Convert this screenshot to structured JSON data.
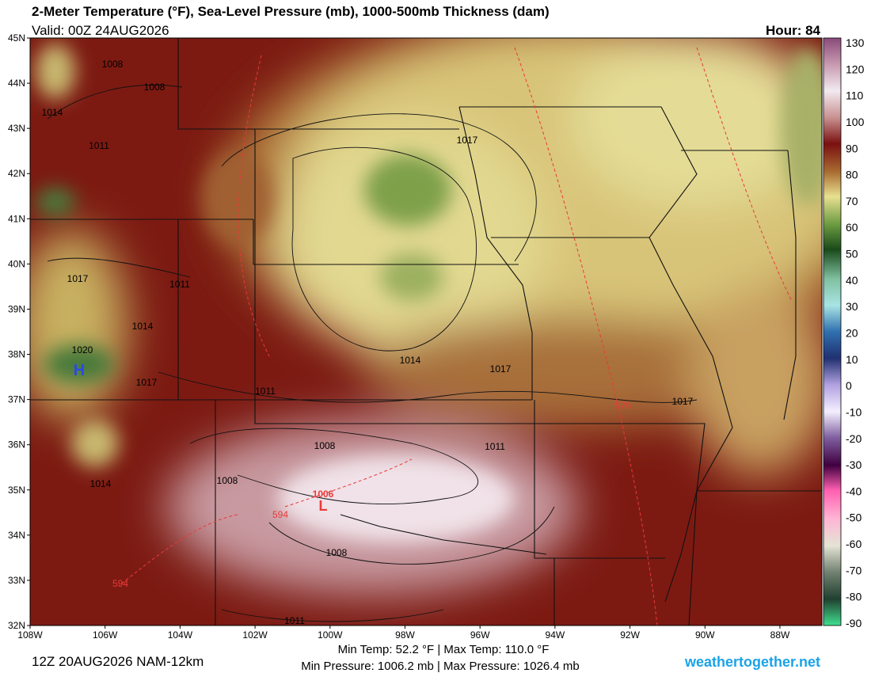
{
  "header": {
    "title": "2-Meter Temperature (°F), Sea-Level Pressure (mb), 1000-500mb Thickness (dam)",
    "valid": "Valid: 00Z 24AUG2026",
    "hour": "Hour: 84"
  },
  "latitude_labels": [
    "45N",
    "44N",
    "43N",
    "42N",
    "41N",
    "40N",
    "39N",
    "38N",
    "37N",
    "36N",
    "35N",
    "34N",
    "33N",
    "32N"
  ],
  "longitude_labels": [
    "108W",
    "106W",
    "104W",
    "102W",
    "100W",
    "98W",
    "96W",
    "94W",
    "92W",
    "90W",
    "88W"
  ],
  "colorbar": {
    "labels": [
      "130",
      "120",
      "110",
      "100",
      "90",
      "80",
      "70",
      "60",
      "50",
      "40",
      "30",
      "20",
      "10",
      "0",
      "-10",
      "-20",
      "-30",
      "-40",
      "-50",
      "-60",
      "-70",
      "-80",
      "-90"
    ]
  },
  "isobar_labels": [
    "1008",
    "1008",
    "1014",
    "1011",
    "1017",
    "1017",
    "1011",
    "1014",
    "1020",
    "1014",
    "1017",
    "1017",
    "1011",
    "1017",
    "1008",
    "1011",
    "1008",
    "1014",
    "1008",
    "1011"
  ],
  "thickness_labels": [
    "576",
    "594",
    "594"
  ],
  "pressure_centers": {
    "low": {
      "symbol": "L",
      "value": "1006"
    },
    "high": {
      "symbol": "H"
    }
  },
  "footer": {
    "run": "12Z 20AUG2026 NAM-12km",
    "temp_range": "Min Temp:  52.2 °F | Max Temp: 110.0 °F",
    "pressure_range": "Min Pressure: 1006.2 mb | Max Pressure: 1026.4 mb",
    "site": "weathertogether.net"
  }
}
